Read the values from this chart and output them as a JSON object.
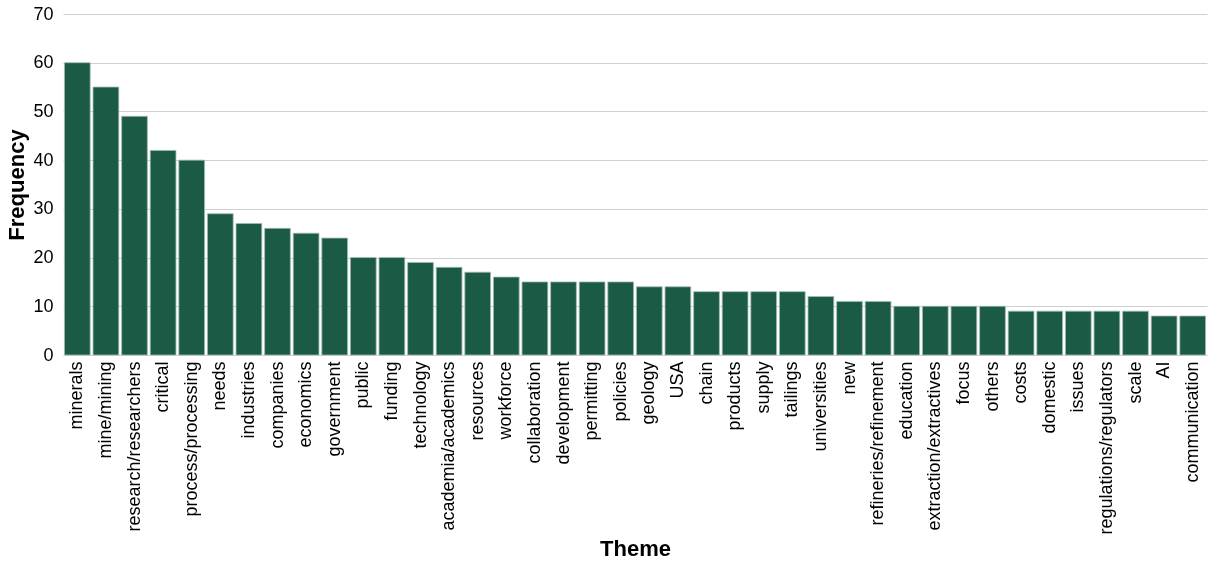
{
  "chart_data": {
    "type": "bar",
    "xlabel": "Theme",
    "ylabel": "Frequency",
    "color": "#1b5a45",
    "categories": [
      "minerals",
      "mine/mining",
      "research/researchers",
      "critical",
      "process/processing",
      "needs",
      "industries",
      "companies",
      "economics",
      "government",
      "public",
      "funding",
      "technology",
      "academia/academics",
      "resources",
      "workforce",
      "collaboration",
      "development",
      "permitting",
      "policies",
      "geology",
      "USA",
      "chain",
      "products",
      "supply",
      "tailings",
      "universities",
      "new",
      "refineries/refinement",
      "education",
      "extraction/extractives",
      "focus",
      "others",
      "costs",
      "domestic",
      "issues",
      "regulations/regulators",
      "scale",
      "AI",
      "communication"
    ],
    "values": [
      60,
      55,
      49,
      42,
      40,
      29,
      27,
      26,
      25,
      24,
      20,
      20,
      19,
      18,
      17,
      16,
      15,
      15,
      15,
      15,
      14,
      14,
      13,
      13,
      13,
      13,
      12,
      11,
      11,
      10,
      10,
      10,
      10,
      9,
      9,
      9,
      9,
      9,
      8,
      8
    ],
    "ylim": [
      0,
      70
    ],
    "yticks": [
      0,
      10,
      20,
      30,
      40,
      50,
      60,
      70
    ],
    "grid": "y"
  }
}
